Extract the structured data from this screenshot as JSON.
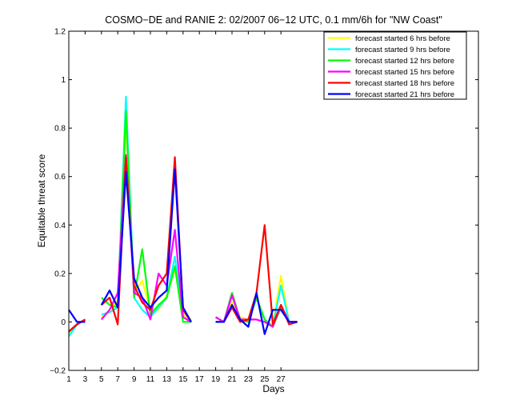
{
  "chart_data": {
    "type": "line",
    "title": "COSMO−DE and RANIE 2: 02/2007 06−12 UTC, 0.1 mm/6h for \"NW Coast\"",
    "xlabel": "Days",
    "ylabel": "Equitable threat score",
    "xlim": [
      1,
      26
    ],
    "ylim": [
      -0.2,
      1.2
    ],
    "xticks": [
      1,
      3,
      5,
      7,
      9,
      11,
      13,
      15,
      17,
      19,
      21,
      23,
      25,
      27
    ],
    "xtick_labels": [
      "1",
      "3",
      "5",
      "7",
      "9",
      "11",
      "13",
      "15",
      "17",
      "19",
      "21",
      "23",
      "25",
      "27"
    ],
    "yticks": [
      -0.2,
      0,
      0.2,
      0.4,
      0.6,
      0.8,
      1,
      1.2
    ],
    "ytick_labels": [
      "−0.2",
      "0",
      "0.2",
      "0.4",
      "0.6",
      "0.8",
      "1",
      "1.2"
    ],
    "grid": false,
    "legend_position": "top-right",
    "series": [
      {
        "name": "forecast started 6 hrs before",
        "color": "#ffff00",
        "values": [
          [
            [
              1,
              -0.05
            ],
            [
              2,
              -0.01
            ],
            [
              3,
              0.01
            ]
          ],
          [
            [
              5,
              0.02
            ],
            [
              6,
              0.05
            ],
            [
              7,
              0.09
            ],
            [
              8,
              0.83
            ],
            [
              9,
              0.12
            ],
            [
              10,
              0.17
            ],
            [
              11,
              0.05
            ],
            [
              12,
              0.05
            ],
            [
              13,
              0.11
            ],
            [
              14,
              0.22
            ],
            [
              15,
              0.03
            ],
            [
              16,
              0.01
            ]
          ],
          [
            [
              19,
              0.02
            ],
            [
              20,
              0.0
            ],
            [
              21,
              0.08
            ],
            [
              22,
              0.02
            ],
            [
              23,
              0.01
            ],
            [
              24,
              0.01
            ],
            [
              25,
              0.0
            ],
            [
              26,
              -0.01
            ],
            [
              27,
              0.19
            ],
            [
              28,
              0.0
            ],
            [
              29,
              0.0
            ]
          ]
        ]
      },
      {
        "name": "forecast started 9 hrs before",
        "color": "#00ffff",
        "values": [
          [
            [
              1,
              -0.06
            ],
            [
              2,
              -0.01
            ],
            [
              3,
              0.01
            ]
          ],
          [
            [
              5,
              0.03
            ],
            [
              6,
              0.04
            ],
            [
              7,
              0.06
            ],
            [
              8,
              0.93
            ],
            [
              9,
              0.1
            ],
            [
              10,
              0.05
            ],
            [
              11,
              0.02
            ],
            [
              12,
              0.06
            ],
            [
              13,
              0.1
            ],
            [
              14,
              0.27
            ],
            [
              15,
              0.02
            ],
            [
              16,
              0.0
            ]
          ],
          [
            [
              19,
              0.02
            ],
            [
              20,
              0.0
            ],
            [
              21,
              0.06
            ],
            [
              22,
              0.01
            ],
            [
              23,
              0.0
            ],
            [
              24,
              0.1
            ],
            [
              25,
              0.01
            ],
            [
              26,
              -0.02
            ],
            [
              27,
              0.15
            ],
            [
              28,
              0.0
            ],
            [
              29,
              0.0
            ]
          ]
        ]
      },
      {
        "name": "forecast started 12 hrs before",
        "color": "#00ff00",
        "values": [
          [
            [
              1,
              -0.04
            ],
            [
              2,
              -0.01
            ],
            [
              3,
              0.01
            ]
          ],
          [
            [
              5,
              0.1
            ],
            [
              6,
              0.07
            ],
            [
              7,
              0.06
            ],
            [
              8,
              0.87
            ],
            [
              9,
              0.1
            ],
            [
              10,
              0.3
            ],
            [
              11,
              0.03
            ],
            [
              12,
              0.07
            ],
            [
              13,
              0.1
            ],
            [
              14,
              0.23
            ],
            [
              15,
              0.0
            ],
            [
              16,
              0.0
            ]
          ],
          [
            [
              19,
              0.02
            ],
            [
              20,
              0.0
            ],
            [
              21,
              0.12
            ],
            [
              22,
              0.01
            ],
            [
              23,
              0.0
            ],
            [
              24,
              0.1
            ],
            [
              25,
              0.01
            ],
            [
              26,
              -0.02
            ],
            [
              27,
              0.06
            ],
            [
              28,
              0.0
            ],
            [
              29,
              0.0
            ]
          ]
        ]
      },
      {
        "name": "forecast started 15 hrs before",
        "color": "#ff00ff",
        "values": [
          [
            [
              1,
              -0.04
            ],
            [
              2,
              -0.01
            ],
            [
              3,
              0.01
            ]
          ],
          [
            [
              5,
              0.01
            ],
            [
              6,
              0.05
            ],
            [
              7,
              0.12
            ],
            [
              8,
              0.69
            ],
            [
              9,
              0.12
            ],
            [
              10,
              0.1
            ],
            [
              11,
              0.01
            ],
            [
              12,
              0.2
            ],
            [
              13,
              0.15
            ],
            [
              14,
              0.38
            ],
            [
              15,
              0.02
            ],
            [
              16,
              0.0
            ]
          ],
          [
            [
              19,
              0.02
            ],
            [
              20,
              0.0
            ],
            [
              21,
              0.11
            ],
            [
              22,
              0.01
            ],
            [
              23,
              0.01
            ],
            [
              24,
              0.01
            ],
            [
              25,
              0.0
            ],
            [
              26,
              -0.02
            ],
            [
              27,
              0.07
            ],
            [
              28,
              0.0
            ],
            [
              29,
              0.0
            ]
          ]
        ]
      },
      {
        "name": "forecast started 18 hrs before",
        "color": "#ff0000",
        "values": [
          [
            [
              1,
              -0.04
            ],
            [
              2,
              -0.01
            ],
            [
              3,
              0.01
            ]
          ],
          [
            [
              5,
              0.07
            ],
            [
              6,
              0.1
            ],
            [
              7,
              -0.01
            ],
            [
              8,
              0.68
            ],
            [
              9,
              0.15
            ],
            [
              10,
              0.08
            ],
            [
              11,
              0.05
            ],
            [
              12,
              0.15
            ],
            [
              13,
              0.2
            ],
            [
              14,
              0.68
            ],
            [
              15,
              0.05
            ],
            [
              16,
              0.0
            ]
          ],
          [
            [
              19,
              0.0
            ],
            [
              20,
              0.0
            ],
            [
              21,
              0.06
            ],
            [
              22,
              0.0
            ],
            [
              23,
              0.01
            ],
            [
              24,
              0.12
            ],
            [
              25,
              0.4
            ],
            [
              26,
              -0.01
            ],
            [
              27,
              0.07
            ],
            [
              28,
              -0.01
            ],
            [
              29,
              0.0
            ]
          ]
        ]
      },
      {
        "name": "forecast started 21 hrs before",
        "color": "#0000ff",
        "values": [
          [
            [
              1,
              0.05
            ],
            [
              2,
              0.0
            ],
            [
              3,
              0.0
            ]
          ],
          [
            [
              5,
              0.07
            ],
            [
              6,
              0.13
            ],
            [
              7,
              0.06
            ],
            [
              8,
              0.62
            ],
            [
              9,
              0.18
            ],
            [
              10,
              0.1
            ],
            [
              11,
              0.06
            ],
            [
              12,
              0.1
            ],
            [
              13,
              0.13
            ],
            [
              14,
              0.63
            ],
            [
              15,
              0.06
            ],
            [
              16,
              0.0
            ]
          ],
          [
            [
              19,
              0.0
            ],
            [
              20,
              0.0
            ],
            [
              21,
              0.07
            ],
            [
              22,
              0.01
            ],
            [
              23,
              -0.02
            ],
            [
              24,
              0.12
            ],
            [
              25,
              -0.05
            ],
            [
              26,
              0.05
            ],
            [
              27,
              0.05
            ],
            [
              28,
              0.0
            ],
            [
              29,
              0.0
            ]
          ]
        ]
      }
    ]
  }
}
